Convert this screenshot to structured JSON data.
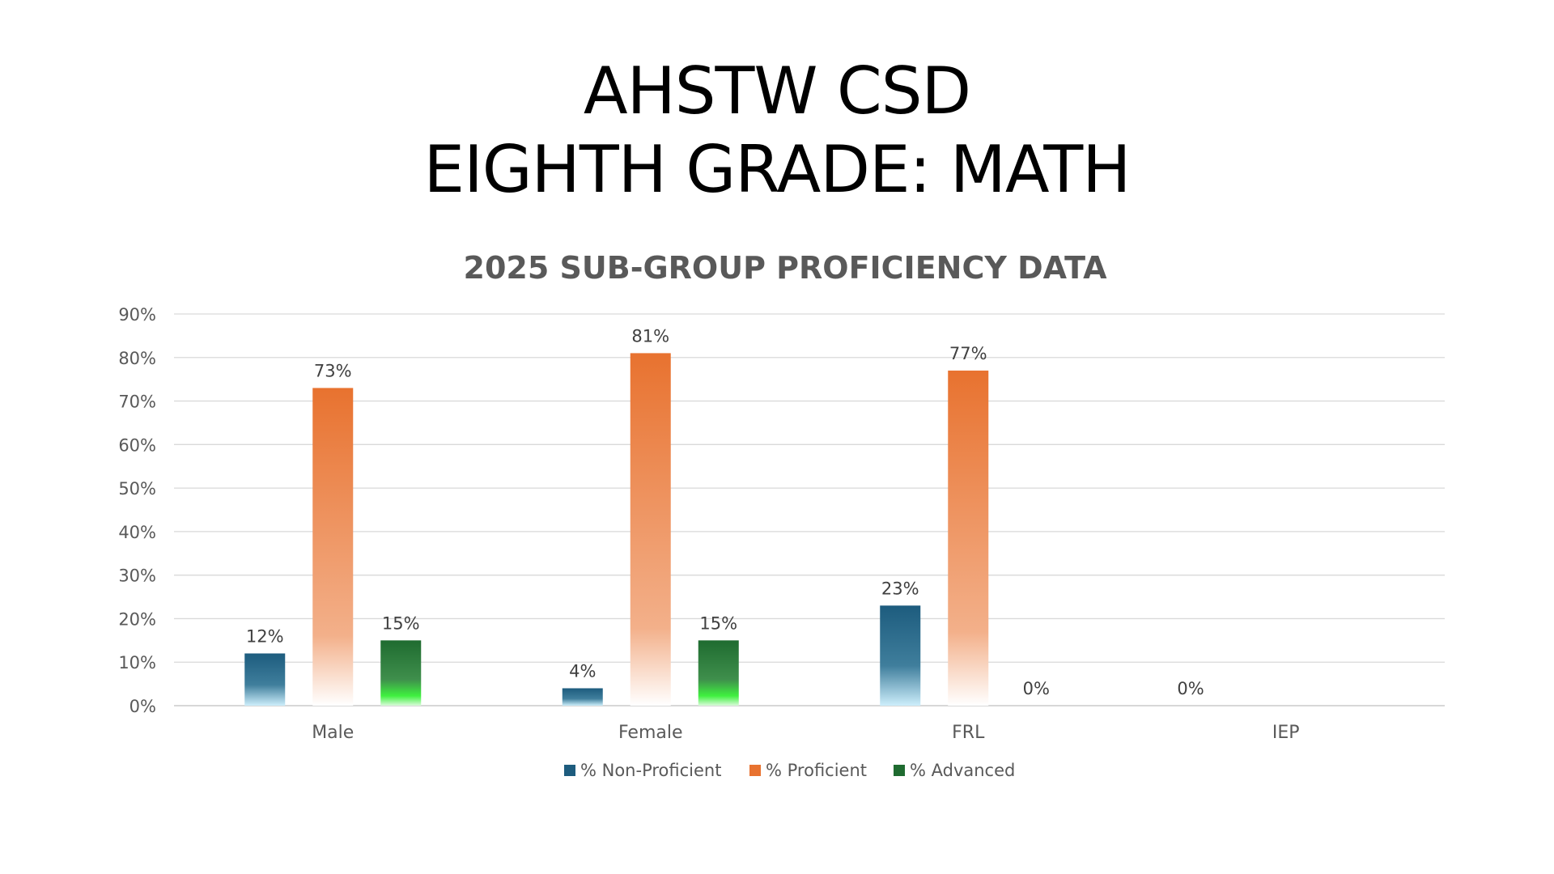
{
  "slide": {
    "title_line1": "AHSTW CSD",
    "title_line2": "EIGHTH GRADE: MATH"
  },
  "colors": {
    "non_proficient": "#1d5c7e",
    "non_proficient_light": "#52c6f2",
    "proficient": "#e8722f",
    "advanced": "#1f6b30",
    "advanced_light": "#3ff03f",
    "gridline": "#d9d9d9",
    "axis_text": "#595959",
    "data_label": "#404040",
    "chart_title": "#595959"
  },
  "chart_data": {
    "type": "bar",
    "title": "2025 SUB-GROUP PROFICIENCY DATA",
    "xlabel": "",
    "ylabel": "",
    "categories": [
      "Male",
      "Female",
      "FRL",
      "IEP"
    ],
    "series": [
      {
        "name": "% Non-Proficient",
        "values": [
          12,
          4,
          23,
          null
        ],
        "labels": [
          "12%",
          "4%",
          "23%",
          ""
        ]
      },
      {
        "name": "% Proficient",
        "values": [
          73,
          81,
          77,
          null
        ],
        "labels": [
          "73%",
          "81%",
          "77%",
          ""
        ]
      },
      {
        "name": "% Advanced",
        "values": [
          15,
          15,
          0,
          0
        ],
        "labels": [
          "15%",
          "15%",
          "0%",
          "0%"
        ]
      }
    ],
    "ylim": [
      0,
      90
    ],
    "yticks": [
      "0%",
      "10%",
      "20%",
      "30%",
      "40%",
      "50%",
      "60%",
      "70%",
      "80%",
      "90%"
    ],
    "grid": true,
    "legend_position": "bottom"
  }
}
